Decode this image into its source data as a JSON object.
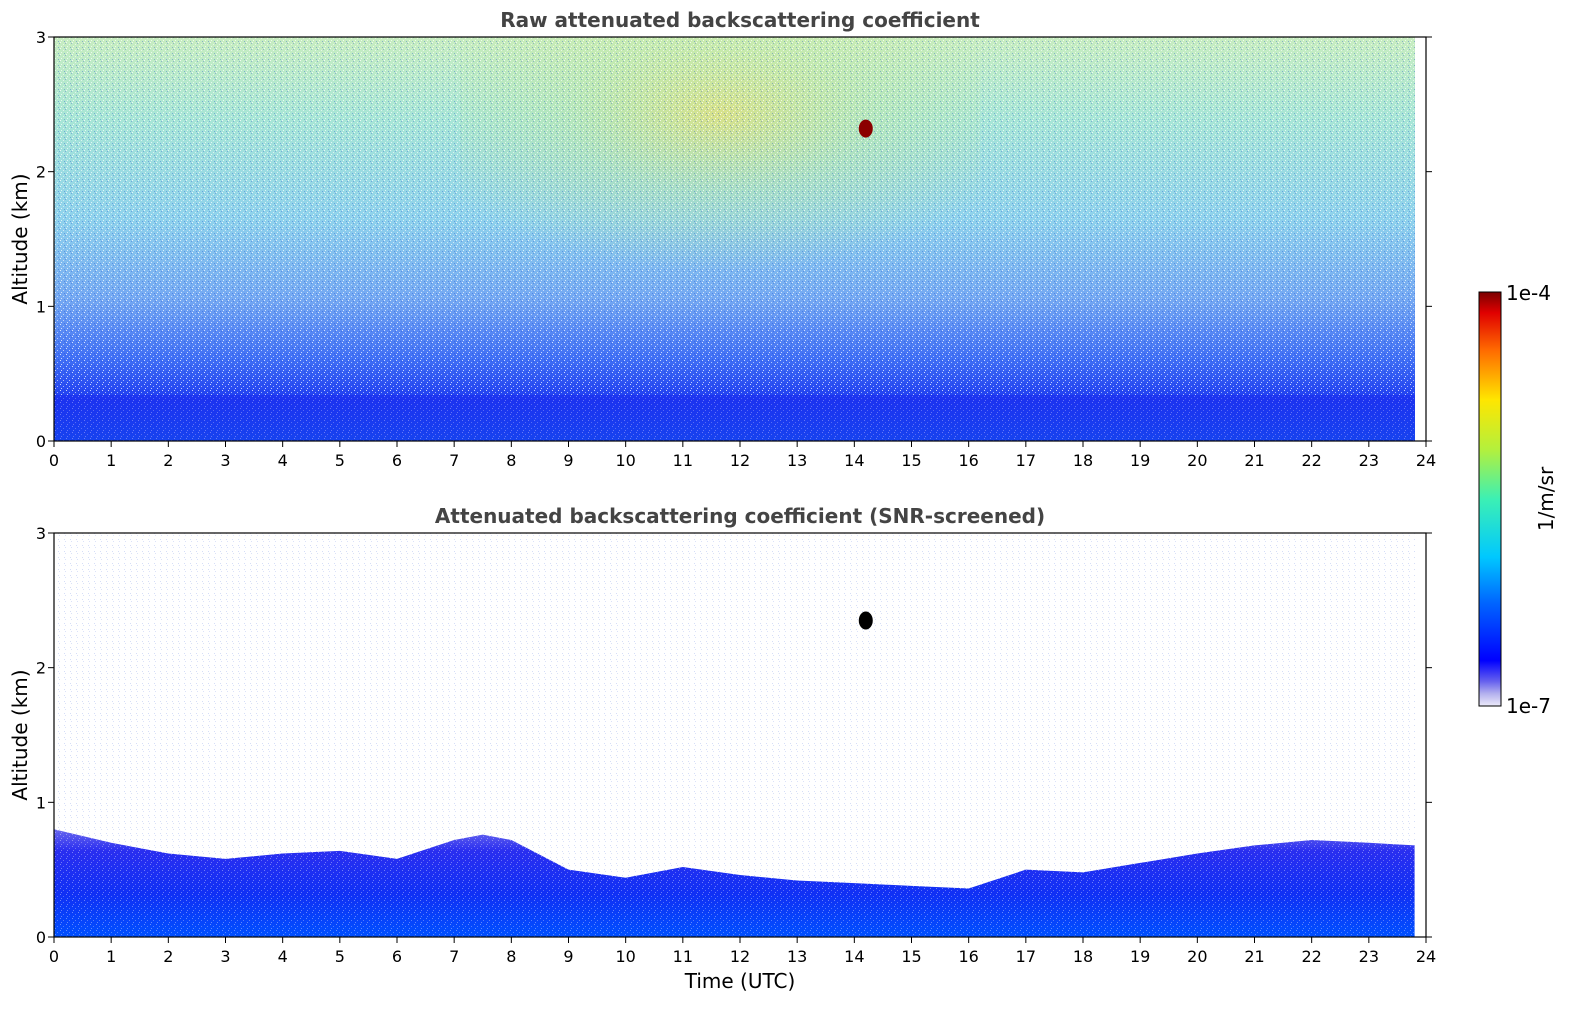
{
  "chart_data": [
    {
      "type": "heatmap",
      "title": "Raw attenuated backscattering coefficient",
      "xlabel": "",
      "ylabel": "Altitude (km)",
      "xlim": [
        0,
        24
      ],
      "ylim": [
        0,
        3
      ],
      "xticks": [
        "0",
        "1",
        "2",
        "3",
        "4",
        "5",
        "6",
        "7",
        "8",
        "9",
        "10",
        "11",
        "12",
        "13",
        "14",
        "15",
        "16",
        "17",
        "18",
        "19",
        "20",
        "21",
        "22",
        "23",
        "24"
      ],
      "yticks": [
        "0",
        "1",
        "2",
        "3"
      ],
      "annotations": [
        {
          "type": "plume",
          "x": 14.2,
          "y": 2.32,
          "note": "dense high-backscatter spot"
        }
      ]
    },
    {
      "type": "heatmap",
      "title": "Attenuated backscattering coefficient (SNR-screened)",
      "xlabel": "Time (UTC)",
      "ylabel": "Altitude (km)",
      "xlim": [
        0,
        24
      ],
      "ylim": [
        0,
        3
      ],
      "xticks": [
        "0",
        "1",
        "2",
        "3",
        "4",
        "5",
        "6",
        "7",
        "8",
        "9",
        "10",
        "11",
        "12",
        "13",
        "14",
        "15",
        "16",
        "17",
        "18",
        "19",
        "20",
        "21",
        "22",
        "23",
        "24"
      ],
      "yticks": [
        "0",
        "1",
        "2",
        "3"
      ],
      "boundary_layer_top_km": {
        "x": [
          0,
          1,
          2,
          3,
          4,
          5,
          6,
          7,
          7.5,
          8,
          9,
          10,
          11,
          12,
          13,
          14,
          15,
          16,
          17,
          18,
          19,
          20,
          21,
          22,
          23,
          23.8
        ],
        "y": [
          0.8,
          0.7,
          0.62,
          0.58,
          0.62,
          0.64,
          0.58,
          0.72,
          0.76,
          0.72,
          0.5,
          0.44,
          0.52,
          0.46,
          0.42,
          0.4,
          0.38,
          0.36,
          0.5,
          0.48,
          0.55,
          0.62,
          0.68,
          0.72,
          0.7,
          0.68
        ]
      },
      "annotations": [
        {
          "type": "plume",
          "x": 14.2,
          "y": 2.35,
          "note": "dense high-backscatter spot"
        }
      ]
    }
  ],
  "colorbar": {
    "max_label": "1e-4",
    "min_label": "1e-7",
    "unit_label": "1/m/sr",
    "colormap": "jet",
    "scale": "log",
    "range": [
      1e-07,
      0.0001
    ]
  },
  "colors": {
    "title": "#444444",
    "plume_raw": "#8b0000",
    "plume_screened": "#000000"
  }
}
